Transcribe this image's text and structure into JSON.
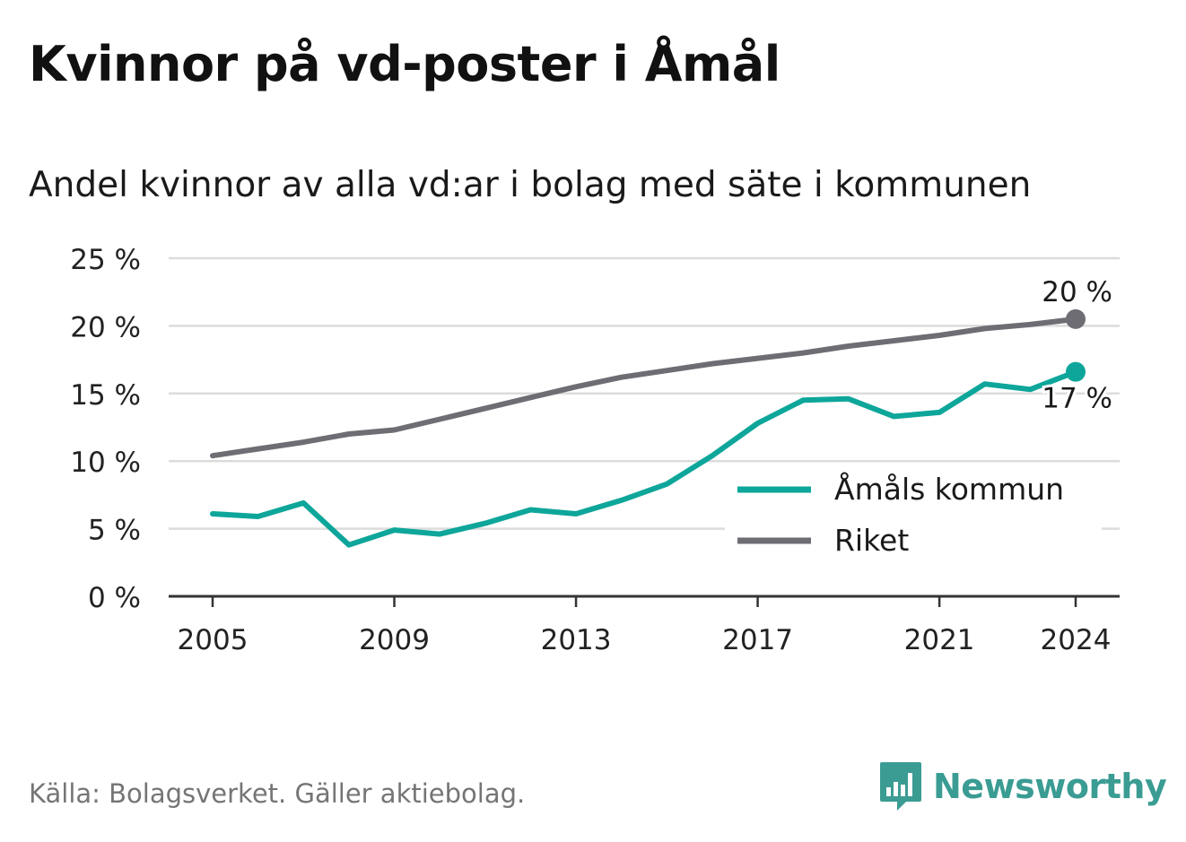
{
  "header": {
    "title": "Kvinnor på vd-poster i Åmål",
    "subtitle": "Andel kvinnor av alla vd:ar i bolag med säte i kommunen"
  },
  "footer": {
    "source": "Källa: Bolagsverket. Gäller aktiebolag.",
    "brand": "Newsworthy",
    "brand_icon": "bar-chart-speech-bubble-icon"
  },
  "colors": {
    "amal": "#0ea69a",
    "riket": "#6e6d73",
    "grid": "#dcdcdc",
    "axis": "#333333",
    "brand": "#3a9c93"
  },
  "chart_data": {
    "type": "line",
    "x": [
      2005,
      2006,
      2007,
      2008,
      2009,
      2010,
      2011,
      2012,
      2013,
      2014,
      2015,
      2016,
      2017,
      2018,
      2019,
      2020,
      2021,
      2022,
      2023,
      2024
    ],
    "series": [
      {
        "name": "Åmåls kommun",
        "color": "#0ea69a",
        "values": [
          6.1,
          5.9,
          6.9,
          3.8,
          4.9,
          4.6,
          5.4,
          6.4,
          6.1,
          7.1,
          8.3,
          10.4,
          12.8,
          14.5,
          14.6,
          13.3,
          13.6,
          15.7,
          15.3,
          16.6
        ],
        "end_label": "17 %"
      },
      {
        "name": "Riket",
        "color": "#6e6d73",
        "values": [
          10.4,
          10.9,
          11.4,
          12.0,
          12.3,
          13.1,
          13.9,
          14.7,
          15.5,
          16.2,
          16.7,
          17.2,
          17.6,
          18.0,
          18.5,
          18.9,
          19.3,
          19.8,
          20.1,
          20.5
        ],
        "end_label": "20 %"
      }
    ],
    "ylim": [
      0,
      25
    ],
    "y_ticks": [
      0,
      5,
      10,
      15,
      20,
      25
    ],
    "y_tick_labels": [
      "0 %",
      "5 %",
      "10 %",
      "15 %",
      "20 %",
      "25 %"
    ],
    "x_ticks": [
      2005,
      2009,
      2013,
      2017,
      2021,
      2024
    ],
    "x_tick_labels": [
      "2005",
      "2009",
      "2013",
      "2017",
      "2021",
      "2024"
    ],
    "xlabel": "",
    "ylabel": "",
    "grid": true,
    "legend_position": "bottom-right"
  }
}
